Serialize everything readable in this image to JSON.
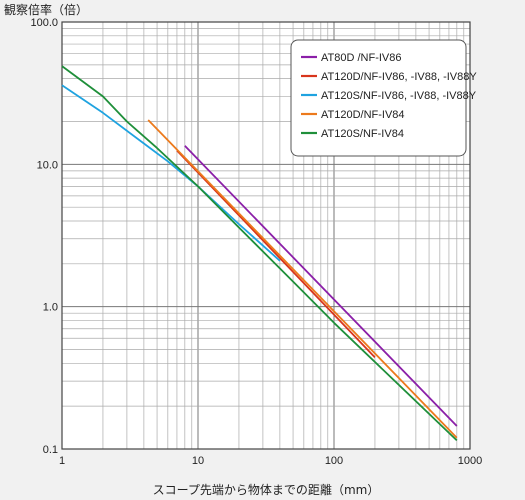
{
  "chart_data": {
    "type": "line",
    "xscale": "log",
    "yscale": "log",
    "xlim": [
      1,
      1000
    ],
    "ylim": [
      0.1,
      100
    ],
    "xlabel": "スコープ先端から物体までの距離（mm）",
    "ylabel": "観察倍率（倍）",
    "x_ticks": [
      "1",
      "10",
      "100",
      "1000"
    ],
    "y_ticks": [
      "100.0",
      "10.0",
      "1.0",
      "0.1"
    ],
    "grid": true,
    "legend_position": "top-right",
    "series": [
      {
        "name": "AT80D /NF-IV86",
        "color": "#8b1fa8",
        "points": [
          [
            8,
            13.5
          ],
          [
            800,
            0.145
          ]
        ]
      },
      {
        "name": "AT120D/NF-IV86, -IV88, -IV88Y",
        "color": "#d8351c",
        "points": [
          [
            7,
            12.5
          ],
          [
            200,
            0.44
          ]
        ]
      },
      {
        "name": "AT120S/NF-IV86, -IV88, -IV88Y",
        "color": "#1fa3e0",
        "points": [
          [
            1,
            36
          ],
          [
            2,
            23
          ],
          [
            4,
            14
          ],
          [
            6,
            10.5
          ],
          [
            10,
            7
          ],
          [
            20,
            3.8
          ],
          [
            40,
            2.1
          ]
        ]
      },
      {
        "name": "AT120D/NF-IV84",
        "color": "#ec7a1c",
        "points": [
          [
            4.3,
            20.5
          ],
          [
            800,
            0.12
          ]
        ]
      },
      {
        "name": "AT120S/NF-IV84",
        "color": "#1f8f3a",
        "points": [
          [
            1,
            49
          ],
          [
            2,
            30
          ],
          [
            3,
            20
          ],
          [
            5,
            13
          ],
          [
            10,
            7
          ],
          [
            20,
            3.6
          ],
          [
            50,
            1.5
          ],
          [
            100,
            0.77
          ],
          [
            800,
            0.115
          ]
        ]
      }
    ]
  }
}
